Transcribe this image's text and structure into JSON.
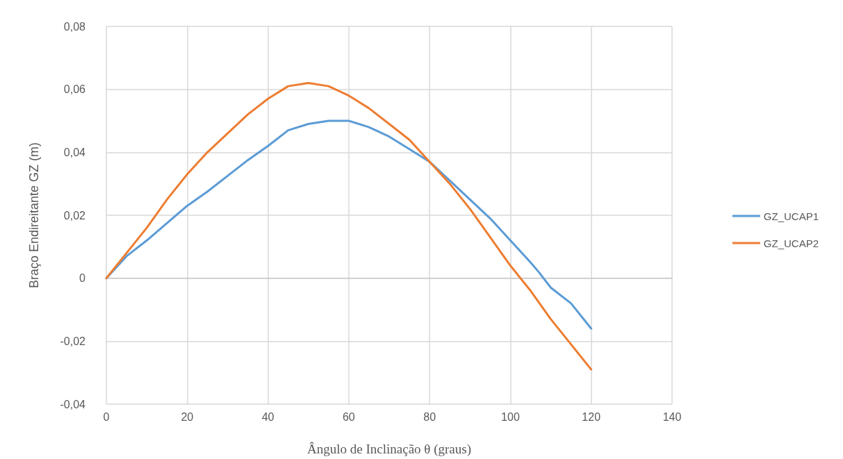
{
  "chart_data": {
    "type": "line",
    "xlabel": "Ângulo de Inclinação θ (graus)",
    "ylabel": "Braço Endireitante GZ (m)",
    "xlim": [
      0,
      140
    ],
    "xticks": [
      0,
      20,
      40,
      60,
      80,
      100,
      120,
      140
    ],
    "ylim": [
      -0.04,
      0.08
    ],
    "yticks": [
      {
        "value": -0.04,
        "label": "-0,04"
      },
      {
        "value": -0.02,
        "label": "-0,02"
      },
      {
        "value": 0,
        "label": "0"
      },
      {
        "value": 0.02,
        "label": "0,02"
      },
      {
        "value": 0.04,
        "label": "0,04"
      },
      {
        "value": 0.06,
        "label": "0,06"
      },
      {
        "value": 0.08,
        "label": "0,08"
      }
    ],
    "grid": true,
    "legend": "right",
    "marker": "none",
    "line_style": "solid",
    "series": [
      {
        "name": "GZ_UCAP1",
        "color": "#5b9bd5",
        "x": [
          0,
          5,
          10,
          15,
          20,
          25,
          30,
          35,
          40,
          45,
          50,
          55,
          60,
          65,
          70,
          75,
          80,
          85,
          90,
          95,
          100,
          105,
          107,
          110,
          115,
          120
        ],
        "values": [
          0,
          0.007,
          0.012,
          0.0175,
          0.023,
          0.0275,
          0.0325,
          0.0375,
          0.042,
          0.047,
          0.049,
          0.05,
          0.05,
          0.048,
          0.045,
          0.041,
          0.037,
          0.031,
          0.025,
          0.019,
          0.012,
          0.005,
          0.002,
          -0.003,
          -0.008,
          -0.016
        ]
      },
      {
        "name": "GZ_UCAP2",
        "color": "#ed7d31",
        "x": [
          0,
          5,
          10,
          15,
          20,
          25,
          30,
          35,
          40,
          45,
          50,
          55,
          60,
          65,
          70,
          75,
          80,
          85,
          90,
          95,
          100,
          105,
          110,
          115,
          120
        ],
        "values": [
          0,
          0.008,
          0.016,
          0.025,
          0.033,
          0.04,
          0.046,
          0.052,
          0.057,
          0.061,
          0.062,
          0.061,
          0.058,
          0.054,
          0.049,
          0.044,
          0.037,
          0.03,
          0.022,
          0.013,
          0.004,
          -0.004,
          -0.013,
          -0.021,
          -0.029
        ]
      }
    ]
  }
}
